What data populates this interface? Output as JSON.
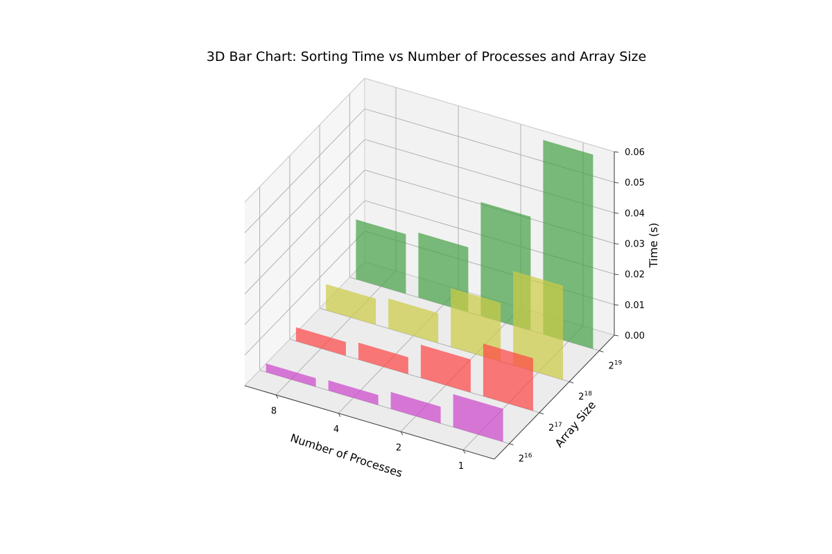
{
  "chart_data": {
    "type": "bar3d",
    "title": "3D Bar Chart: Sorting Time vs Number of Processes and Array Size",
    "xlabel": "Number of Processes",
    "ylabel": "Array Size",
    "zlabel": "Time (s)",
    "x_categories": [
      "1",
      "2",
      "4",
      "8"
    ],
    "y_categories": [
      {
        "base": "2",
        "exp": "16"
      },
      {
        "base": "2",
        "exp": "17"
      },
      {
        "base": "2",
        "exp": "18"
      },
      {
        "base": "2",
        "exp": "19"
      }
    ],
    "z_ticks": [
      "0.00",
      "0.01",
      "0.02",
      "0.03",
      "0.04",
      "0.05",
      "0.06"
    ],
    "zlim": [
      0,
      0.06
    ],
    "grid": true,
    "series": [
      {
        "y_index": 0,
        "color": "#cc44cc",
        "values": [
          0.0108,
          0.0055,
          0.0033,
          0.0028
        ]
      },
      {
        "y_index": 1,
        "color": "#ff4444",
        "values": [
          0.0172,
          0.0108,
          0.0055,
          0.0045
        ]
      },
      {
        "y_index": 2,
        "color": "#cccc44",
        "values": [
          0.0308,
          0.0192,
          0.0098,
          0.0085
        ]
      },
      {
        "y_index": 3,
        "color": "#44a044",
        "values": [
          0.0635,
          0.0372,
          0.0212,
          0.0195
        ]
      }
    ]
  }
}
